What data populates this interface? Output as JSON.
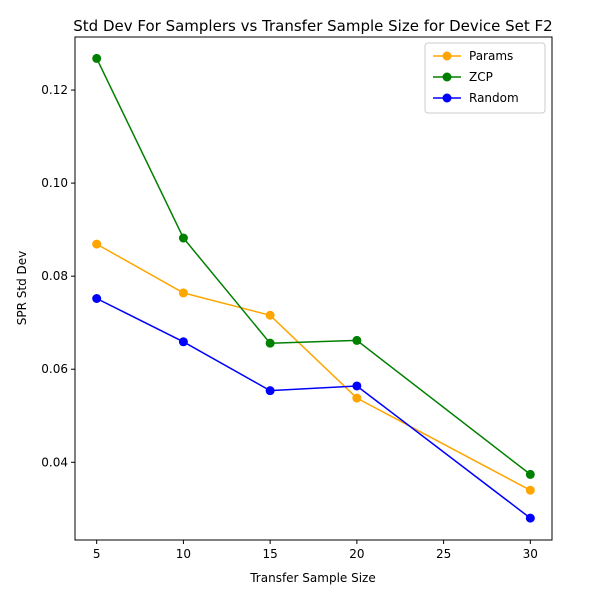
{
  "chart_data": {
    "type": "line",
    "title": "Std Dev For Samplers vs Transfer Sample Size for Device Set F2",
    "xlabel": "Transfer Sample Size",
    "ylabel": "SPR Std Dev",
    "x": [
      5,
      10,
      15,
      20,
      30
    ],
    "xlim": [
      3.75,
      31.25
    ],
    "ylim": [
      0.0233,
      0.1314
    ],
    "xticks": [
      5,
      10,
      15,
      20,
      25,
      30
    ],
    "yticks": [
      0.04,
      0.06,
      0.08,
      0.1,
      0.12
    ],
    "ytick_labels": [
      "0.04",
      "0.06",
      "0.08",
      "0.10",
      "0.12"
    ],
    "grid": false,
    "legend_position": "top-right",
    "series": [
      {
        "name": "Params",
        "color": "#ffa500",
        "values": [
          0.0869,
          0.0764,
          0.0716,
          0.0538,
          0.034
        ]
      },
      {
        "name": "ZCP",
        "color": "#008000",
        "values": [
          0.1268,
          0.0882,
          0.0656,
          0.0662,
          0.0374
        ]
      },
      {
        "name": "Random",
        "color": "#0000ff",
        "values": [
          0.0752,
          0.0659,
          0.0554,
          0.0564,
          0.028
        ]
      }
    ]
  }
}
